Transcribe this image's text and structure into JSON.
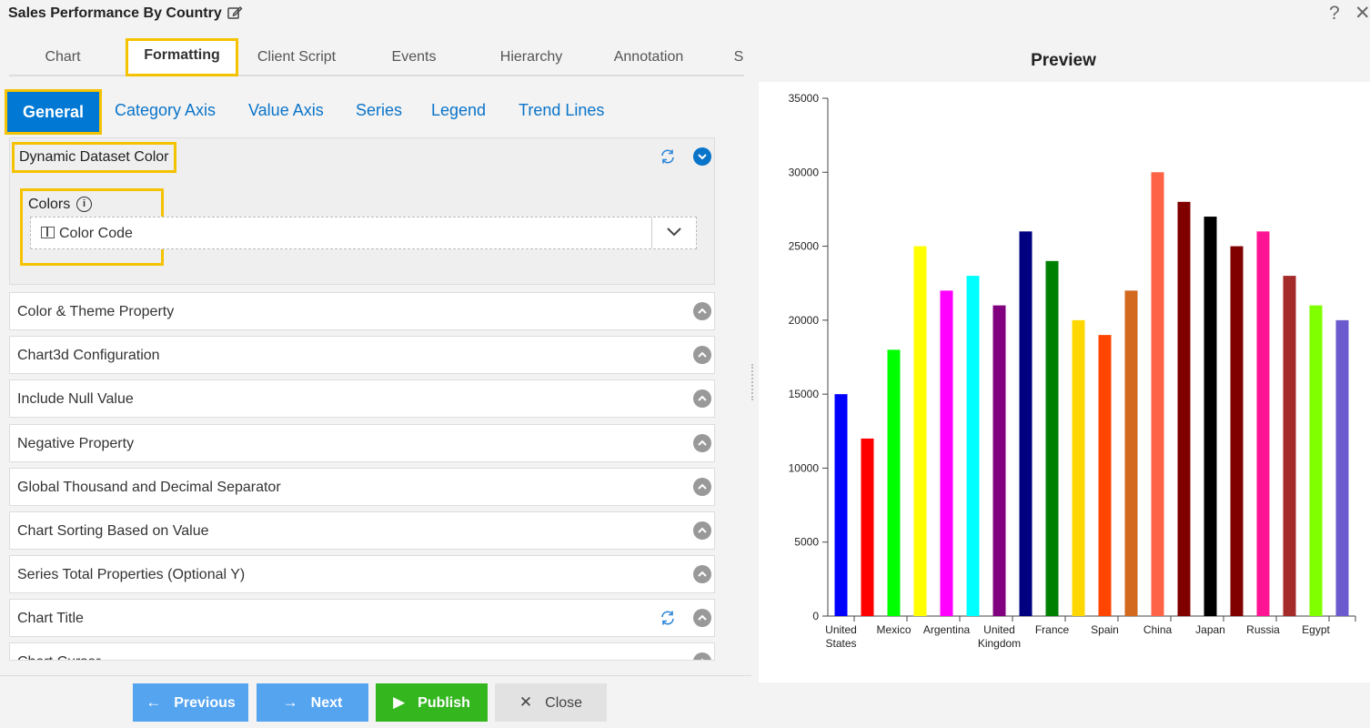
{
  "window": {
    "title": "Sales Performance By Country",
    "help_glyph": "?",
    "close_glyph": "✕"
  },
  "main_tabs": [
    {
      "label": "Chart",
      "active": false
    },
    {
      "label": "Formatting",
      "active": true
    },
    {
      "label": "Client Script",
      "active": false
    },
    {
      "label": "Events",
      "active": false
    },
    {
      "label": "Hierarchy",
      "active": false
    },
    {
      "label": "Annotation",
      "active": false
    },
    {
      "label": "S",
      "active": false
    }
  ],
  "sub_tabs": [
    {
      "label": "General",
      "active": true
    },
    {
      "label": "Category Axis",
      "active": false
    },
    {
      "label": "Value Axis",
      "active": false
    },
    {
      "label": "Series",
      "active": false
    },
    {
      "label": "Legend",
      "active": false
    },
    {
      "label": "Trend Lines",
      "active": false
    }
  ],
  "dynamic_section": {
    "title": "Dynamic Dataset Color",
    "colors_label": "Colors",
    "info_glyph": "i",
    "dropdown_value": "Color Code"
  },
  "accordion": [
    {
      "label": "Color & Theme Property",
      "refresh": false
    },
    {
      "label": "Chart3d Configuration",
      "refresh": false
    },
    {
      "label": "Include Null Value",
      "refresh": false
    },
    {
      "label": "Negative Property",
      "refresh": false
    },
    {
      "label": "Global Thousand and Decimal Separator",
      "refresh": false
    },
    {
      "label": "Chart Sorting Based on Value",
      "refresh": false
    },
    {
      "label": "Series Total Properties (Optional Y)",
      "refresh": false
    },
    {
      "label": "Chart Title",
      "refresh": true
    },
    {
      "label": "Chart Cursor",
      "refresh": false
    }
  ],
  "footer": {
    "previous": "Previous",
    "next": "Next",
    "publish": "Publish",
    "close": "Close"
  },
  "colors": {
    "accent": "#0078d4",
    "highlight": "#f5c200",
    "previous_bg": "#55a4f0",
    "next_bg": "#55a4f0",
    "publish_bg": "#34b61f",
    "close_bg": "#e2e2e2"
  },
  "preview": {
    "title": "Preview"
  },
  "chart_data": {
    "type": "bar",
    "ylim": [
      0,
      35000
    ],
    "yticks": [
      0,
      5000,
      10000,
      15000,
      20000,
      25000,
      30000,
      35000
    ],
    "categories": [
      "United States",
      "",
      "Mexico",
      "",
      "Argentina",
      "",
      "United Kingdom",
      "",
      "France",
      "",
      "Spain",
      "",
      "China",
      "",
      "Japan",
      "",
      "Russia",
      "",
      "Egypt",
      ""
    ],
    "values": [
      15000,
      12000,
      18000,
      25000,
      22000,
      23000,
      21000,
      26000,
      24000,
      20000,
      19000,
      22000,
      30000,
      28000,
      27000,
      25000,
      26000,
      23000,
      21000,
      20000
    ],
    "bar_colors": [
      "#0000ff",
      "#ff0000",
      "#00ff00",
      "#ffff00",
      "#ff00ff",
      "#00ffff",
      "#800080",
      "#000080",
      "#008000",
      "#ffd700",
      "#ff4500",
      "#d2691e",
      "#ff6347",
      "#800000",
      "#000000",
      "#800000",
      "#ff1493",
      "#a52a2a",
      "#7fff00",
      "#6a5acd"
    ],
    "tick_label_lines": [
      [
        "United",
        "States"
      ],
      [],
      [
        "Mexico"
      ],
      [],
      [
        "Argentina"
      ],
      [],
      [
        "United",
        "Kingdom"
      ],
      [],
      [
        "France"
      ],
      [],
      [
        "Spain"
      ],
      [],
      [
        "China"
      ],
      [],
      [
        "Japan"
      ],
      [],
      [
        "Russia"
      ],
      [],
      [
        "Egypt"
      ],
      []
    ]
  }
}
